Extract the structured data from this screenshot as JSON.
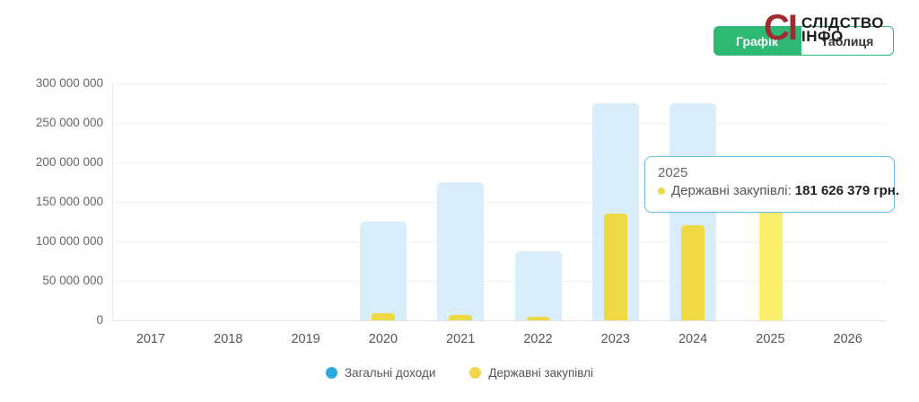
{
  "header": {
    "logo": {
      "mark": "СІ",
      "line1": "СЛІДСТВО",
      "line2": "ІНФО"
    },
    "tabs": [
      {
        "label": "Графік",
        "active": true
      },
      {
        "label": "Таблиця",
        "active": false
      }
    ]
  },
  "tooltip": {
    "title": "2025",
    "series_label": "Державні закупівлі:",
    "value": "181 626 379 грн."
  },
  "chart_data": {
    "type": "bar",
    "title": "",
    "categories": [
      "2017",
      "2018",
      "2019",
      "2020",
      "2021",
      "2022",
      "2023",
      "2024",
      "2025",
      "2026"
    ],
    "series": [
      {
        "name": "Загальні доходи",
        "color": "#d9edfb",
        "legend_color": "#29abe2",
        "values": [
          null,
          null,
          null,
          125000000,
          175000000,
          87000000,
          275000000,
          275000000,
          null,
          null
        ]
      },
      {
        "name": "Державні закупівлі",
        "color": "#eed844",
        "legend_color": "#f0d848",
        "values": [
          null,
          null,
          null,
          9000000,
          7000000,
          4500000,
          135000000,
          120000000,
          181626379,
          null
        ]
      }
    ],
    "highlighted": {
      "category": "2025",
      "series": "Державні закупівлі",
      "color": "#f9f06e"
    },
    "ylim": [
      0,
      300000000
    ],
    "yticks": {
      "values": [
        0,
        50000000,
        100000000,
        150000000,
        200000000,
        250000000,
        300000000
      ],
      "labels": [
        "0",
        "50 000 000",
        "100 000 000",
        "150 000 000",
        "200 000 000",
        "250 000 000",
        "300 000 000"
      ]
    },
    "grid": true,
    "legend_position": "bottom"
  },
  "colors": {
    "accent_green": "#2eb873",
    "logo_red": "#9e2b30",
    "bar_blue": "#d9edfb",
    "bar_yellow": "#eed844",
    "bar_yellow_highlight": "#f9f06e",
    "tooltip_border": "#6cbde8"
  }
}
